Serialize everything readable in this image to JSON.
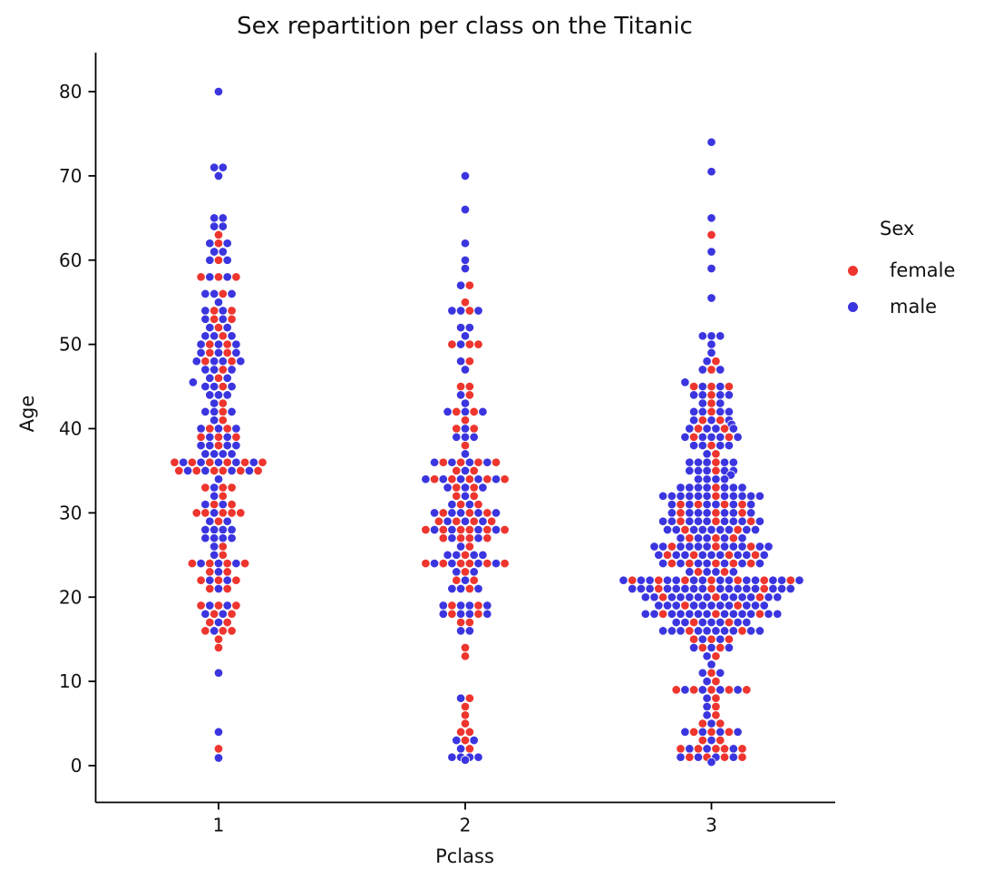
{
  "chart_data": {
    "type": "swarm",
    "title": "Sex repartition per class on the Titanic",
    "xlabel": "Pclass",
    "ylabel": "Age",
    "categories": [
      "1",
      "2",
      "3"
    ],
    "y_ticks": [
      0,
      10,
      20,
      30,
      40,
      50,
      60,
      70,
      80
    ],
    "ylim": [
      0,
      80
    ],
    "grid": false,
    "legend": {
      "title": "Sex",
      "position": "right",
      "entries": [
        {
          "label": "female",
          "color": "#ee352e"
        },
        {
          "label": "male",
          "color": "#3b35e0"
        }
      ]
    },
    "colors": {
      "female": "#ee352e",
      "male": "#3b35e0",
      "axis": "#000000",
      "tick_text": "#111111"
    },
    "classes": [
      {
        "pclass": "1",
        "rows": [
          {
            "a": 80,
            "f": 0,
            "m": 1
          },
          {
            "a": 71,
            "f": 0,
            "m": 2
          },
          {
            "a": 70,
            "f": 0,
            "m": 1
          },
          {
            "a": 65,
            "f": 0,
            "m": 2
          },
          {
            "a": 64,
            "f": 0,
            "m": 2
          },
          {
            "a": 63,
            "f": 1,
            "m": 0
          },
          {
            "a": 62,
            "f": 1,
            "m": 2
          },
          {
            "a": 61,
            "f": 0,
            "m": 2
          },
          {
            "a": 60,
            "f": 1,
            "m": 2
          },
          {
            "a": 58,
            "f": 3,
            "m": 2
          },
          {
            "a": 56,
            "f": 1,
            "m": 3
          },
          {
            "a": 55,
            "f": 0,
            "m": 1
          },
          {
            "a": 54,
            "f": 2,
            "m": 2
          },
          {
            "a": 53,
            "f": 2,
            "m": 2
          },
          {
            "a": 52,
            "f": 1,
            "m": 2
          },
          {
            "a": 51,
            "f": 1,
            "m": 3
          },
          {
            "a": 50,
            "f": 2,
            "m": 3
          },
          {
            "a": 49,
            "f": 2,
            "m": 3
          },
          {
            "a": 48,
            "f": 2,
            "m": 4
          },
          {
            "a": 47,
            "f": 1,
            "m": 3
          },
          {
            "a": 46,
            "f": 1,
            "m": 2
          },
          {
            "a": 45.5,
            "f": 0,
            "m": 1,
            "dx": -2.9
          },
          {
            "a": 45,
            "f": 1,
            "m": 3
          },
          {
            "a": 44,
            "f": 0,
            "m": 3
          },
          {
            "a": 43,
            "f": 1,
            "m": 1
          },
          {
            "a": 42,
            "f": 1,
            "m": 3
          },
          {
            "a": 41,
            "f": 1,
            "m": 1
          },
          {
            "a": 40,
            "f": 2,
            "m": 3
          },
          {
            "a": 39,
            "f": 3,
            "m": 2
          },
          {
            "a": 38,
            "f": 1,
            "m": 4
          },
          {
            "a": 37,
            "f": 0,
            "m": 4
          },
          {
            "a": 36,
            "f": 6,
            "m": 5
          },
          {
            "a": 35,
            "f": 6,
            "m": 4
          },
          {
            "a": 34,
            "f": 0,
            "m": 1
          },
          {
            "a": 33,
            "f": 3,
            "m": 1
          },
          {
            "a": 32,
            "f": 1,
            "m": 1
          },
          {
            "a": 31,
            "f": 2,
            "m": 2
          },
          {
            "a": 30,
            "f": 5,
            "m": 1
          },
          {
            "a": 29,
            "f": 1,
            "m": 2
          },
          {
            "a": 28,
            "f": 0,
            "m": 4
          },
          {
            "a": 27,
            "f": 0,
            "m": 4
          },
          {
            "a": 26,
            "f": 1,
            "m": 1
          },
          {
            "a": 25,
            "f": 1,
            "m": 1
          },
          {
            "a": 24,
            "f": 4,
            "m": 3
          },
          {
            "a": 23,
            "f": 2,
            "m": 1
          },
          {
            "a": 22,
            "f": 3,
            "m": 2
          },
          {
            "a": 21,
            "f": 2,
            "m": 1
          },
          {
            "a": 19,
            "f": 3,
            "m": 2
          },
          {
            "a": 18,
            "f": 2,
            "m": 2
          },
          {
            "a": 17,
            "f": 2,
            "m": 1
          },
          {
            "a": 16,
            "f": 3,
            "m": 1
          },
          {
            "a": 15,
            "f": 1,
            "m": 0
          },
          {
            "a": 14,
            "f": 1,
            "m": 0
          },
          {
            "a": 11,
            "f": 0,
            "m": 1
          },
          {
            "a": 4,
            "f": 0,
            "m": 1
          },
          {
            "a": 2,
            "f": 1,
            "m": 0
          },
          {
            "a": 0.92,
            "f": 0,
            "m": 1
          }
        ]
      },
      {
        "pclass": "2",
        "rows": [
          {
            "a": 70,
            "f": 0,
            "m": 1
          },
          {
            "a": 66,
            "f": 0,
            "m": 1
          },
          {
            "a": 62,
            "f": 0,
            "m": 1
          },
          {
            "a": 60,
            "f": 0,
            "m": 1
          },
          {
            "a": 59,
            "f": 0,
            "m": 1
          },
          {
            "a": 57,
            "f": 1,
            "m": 1
          },
          {
            "a": 55,
            "f": 1,
            "m": 0
          },
          {
            "a": 54,
            "f": 1,
            "m": 3
          },
          {
            "a": 52,
            "f": 0,
            "m": 2
          },
          {
            "a": 51,
            "f": 0,
            "m": 1
          },
          {
            "a": 50,
            "f": 3,
            "m": 1
          },
          {
            "a": 48,
            "f": 1,
            "m": 1
          },
          {
            "a": 47,
            "f": 0,
            "m": 1
          },
          {
            "a": 45,
            "f": 2,
            "m": 0
          },
          {
            "a": 44,
            "f": 1,
            "m": 1
          },
          {
            "a": 43,
            "f": 0,
            "m": 1
          },
          {
            "a": 42,
            "f": 2,
            "m": 3
          },
          {
            "a": 41,
            "f": 1,
            "m": 0
          },
          {
            "a": 40,
            "f": 2,
            "m": 1
          },
          {
            "a": 39,
            "f": 0,
            "m": 3
          },
          {
            "a": 38,
            "f": 1,
            "m": 0
          },
          {
            "a": 37,
            "f": 0,
            "m": 1
          },
          {
            "a": 36,
            "f": 4,
            "m": 4
          },
          {
            "a": 35,
            "f": 2,
            "m": 1
          },
          {
            "a": 34,
            "f": 5,
            "m": 5
          },
          {
            "a": 33,
            "f": 2,
            "m": 3
          },
          {
            "a": 32,
            "f": 2,
            "m": 1
          },
          {
            "a": 31,
            "f": 2,
            "m": 2
          },
          {
            "a": 30,
            "f": 3,
            "m": 5
          },
          {
            "a": 29,
            "f": 4,
            "m": 3
          },
          {
            "a": 28,
            "f": 6,
            "m": 4
          },
          {
            "a": 27,
            "f": 4,
            "m": 2
          },
          {
            "a": 26,
            "f": 1,
            "m": 1
          },
          {
            "a": 25,
            "f": 1,
            "m": 4
          },
          {
            "a": 24,
            "f": 6,
            "m": 4
          },
          {
            "a": 23,
            "f": 1,
            "m": 2
          },
          {
            "a": 22,
            "f": 2,
            "m": 1
          },
          {
            "a": 21,
            "f": 1,
            "m": 3
          },
          {
            "a": 19,
            "f": 2,
            "m": 4
          },
          {
            "a": 18,
            "f": 2,
            "m": 4
          },
          {
            "a": 17,
            "f": 2,
            "m": 0
          },
          {
            "a": 16,
            "f": 0,
            "m": 2
          },
          {
            "a": 14,
            "f": 1,
            "m": 0
          },
          {
            "a": 13,
            "f": 1,
            "m": 0
          },
          {
            "a": 8,
            "f": 1,
            "m": 1
          },
          {
            "a": 7,
            "f": 1,
            "m": 0
          },
          {
            "a": 6,
            "f": 1,
            "m": 0
          },
          {
            "a": 5,
            "f": 1,
            "m": 0
          },
          {
            "a": 4,
            "f": 2,
            "m": 0
          },
          {
            "a": 3,
            "f": 1,
            "m": 2
          },
          {
            "a": 2,
            "f": 1,
            "m": 1
          },
          {
            "a": 1,
            "f": 0,
            "m": 4
          },
          {
            "a": 0.67,
            "f": 0,
            "m": 1
          }
        ]
      },
      {
        "pclass": "3",
        "rows": [
          {
            "a": 74,
            "f": 0,
            "m": 1
          },
          {
            "a": 70.5,
            "f": 0,
            "m": 1
          },
          {
            "a": 65,
            "f": 0,
            "m": 1
          },
          {
            "a": 63,
            "f": 1,
            "m": 0
          },
          {
            "a": 61,
            "f": 0,
            "m": 1
          },
          {
            "a": 59,
            "f": 0,
            "m": 1
          },
          {
            "a": 55.5,
            "f": 0,
            "m": 1
          },
          {
            "a": 51,
            "f": 0,
            "m": 3
          },
          {
            "a": 50,
            "f": 0,
            "m": 1
          },
          {
            "a": 49,
            "f": 0,
            "m": 1
          },
          {
            "a": 48,
            "f": 1,
            "m": 1
          },
          {
            "a": 47,
            "f": 1,
            "m": 2
          },
          {
            "a": 45.5,
            "f": 0,
            "m": 1,
            "dx": -3
          },
          {
            "a": 45,
            "f": 3,
            "m": 2
          },
          {
            "a": 44,
            "f": 1,
            "m": 4
          },
          {
            "a": 43,
            "f": 1,
            "m": 2
          },
          {
            "a": 42,
            "f": 1,
            "m": 4
          },
          {
            "a": 41,
            "f": 2,
            "m": 3
          },
          {
            "a": 40.5,
            "f": 0,
            "m": 1,
            "dx": 2.3
          },
          {
            "a": 40,
            "f": 2,
            "m": 4
          },
          {
            "a": 39,
            "f": 2,
            "m": 5
          },
          {
            "a": 38,
            "f": 1,
            "m": 4
          },
          {
            "a": 37,
            "f": 1,
            "m": 1
          },
          {
            "a": 36,
            "f": 1,
            "m": 5
          },
          {
            "a": 35,
            "f": 1,
            "m": 5
          },
          {
            "a": 34.5,
            "f": 0,
            "m": 1,
            "dx": 2.2
          },
          {
            "a": 34,
            "f": 0,
            "m": 4
          },
          {
            "a": 33,
            "f": 1,
            "m": 7
          },
          {
            "a": 32,
            "f": 1,
            "m": 11
          },
          {
            "a": 31,
            "f": 4,
            "m": 6
          },
          {
            "a": 30,
            "f": 3,
            "m": 7
          },
          {
            "a": 29,
            "f": 3,
            "m": 9
          },
          {
            "a": 28,
            "f": 2,
            "m": 9
          },
          {
            "a": 27,
            "f": 3,
            "m": 5
          },
          {
            "a": 26,
            "f": 3,
            "m": 11
          },
          {
            "a": 25,
            "f": 4,
            "m": 9
          },
          {
            "a": 24,
            "f": 5,
            "m": 7
          },
          {
            "a": 23,
            "f": 2,
            "m": 4
          },
          {
            "a": 22,
            "f": 7,
            "m": 14
          },
          {
            "a": 21,
            "f": 3,
            "m": 16
          },
          {
            "a": 20,
            "f": 3,
            "m": 13
          },
          {
            "a": 19,
            "f": 2,
            "m": 11
          },
          {
            "a": 18,
            "f": 3,
            "m": 13
          },
          {
            "a": 17,
            "f": 2,
            "m": 7
          },
          {
            "a": 16,
            "f": 2,
            "m": 10
          },
          {
            "a": 15,
            "f": 3,
            "m": 2
          },
          {
            "a": 14,
            "f": 2,
            "m": 3
          },
          {
            "a": 13,
            "f": 1,
            "m": 1
          },
          {
            "a": 12,
            "f": 0,
            "m": 1
          },
          {
            "a": 11,
            "f": 1,
            "m": 2
          },
          {
            "a": 10,
            "f": 1,
            "m": 1
          },
          {
            "a": 9,
            "f": 5,
            "m": 4
          },
          {
            "a": 8,
            "f": 1,
            "m": 1
          },
          {
            "a": 7,
            "f": 1,
            "m": 1
          },
          {
            "a": 6,
            "f": 1,
            "m": 1
          },
          {
            "a": 5,
            "f": 2,
            "m": 1
          },
          {
            "a": 4,
            "f": 3,
            "m": 4
          },
          {
            "a": 3,
            "f": 2,
            "m": 1
          },
          {
            "a": 2,
            "f": 5,
            "m": 3
          },
          {
            "a": 1,
            "f": 4,
            "m": 4
          },
          {
            "a": 0.42,
            "f": 0,
            "m": 1
          }
        ]
      }
    ]
  }
}
